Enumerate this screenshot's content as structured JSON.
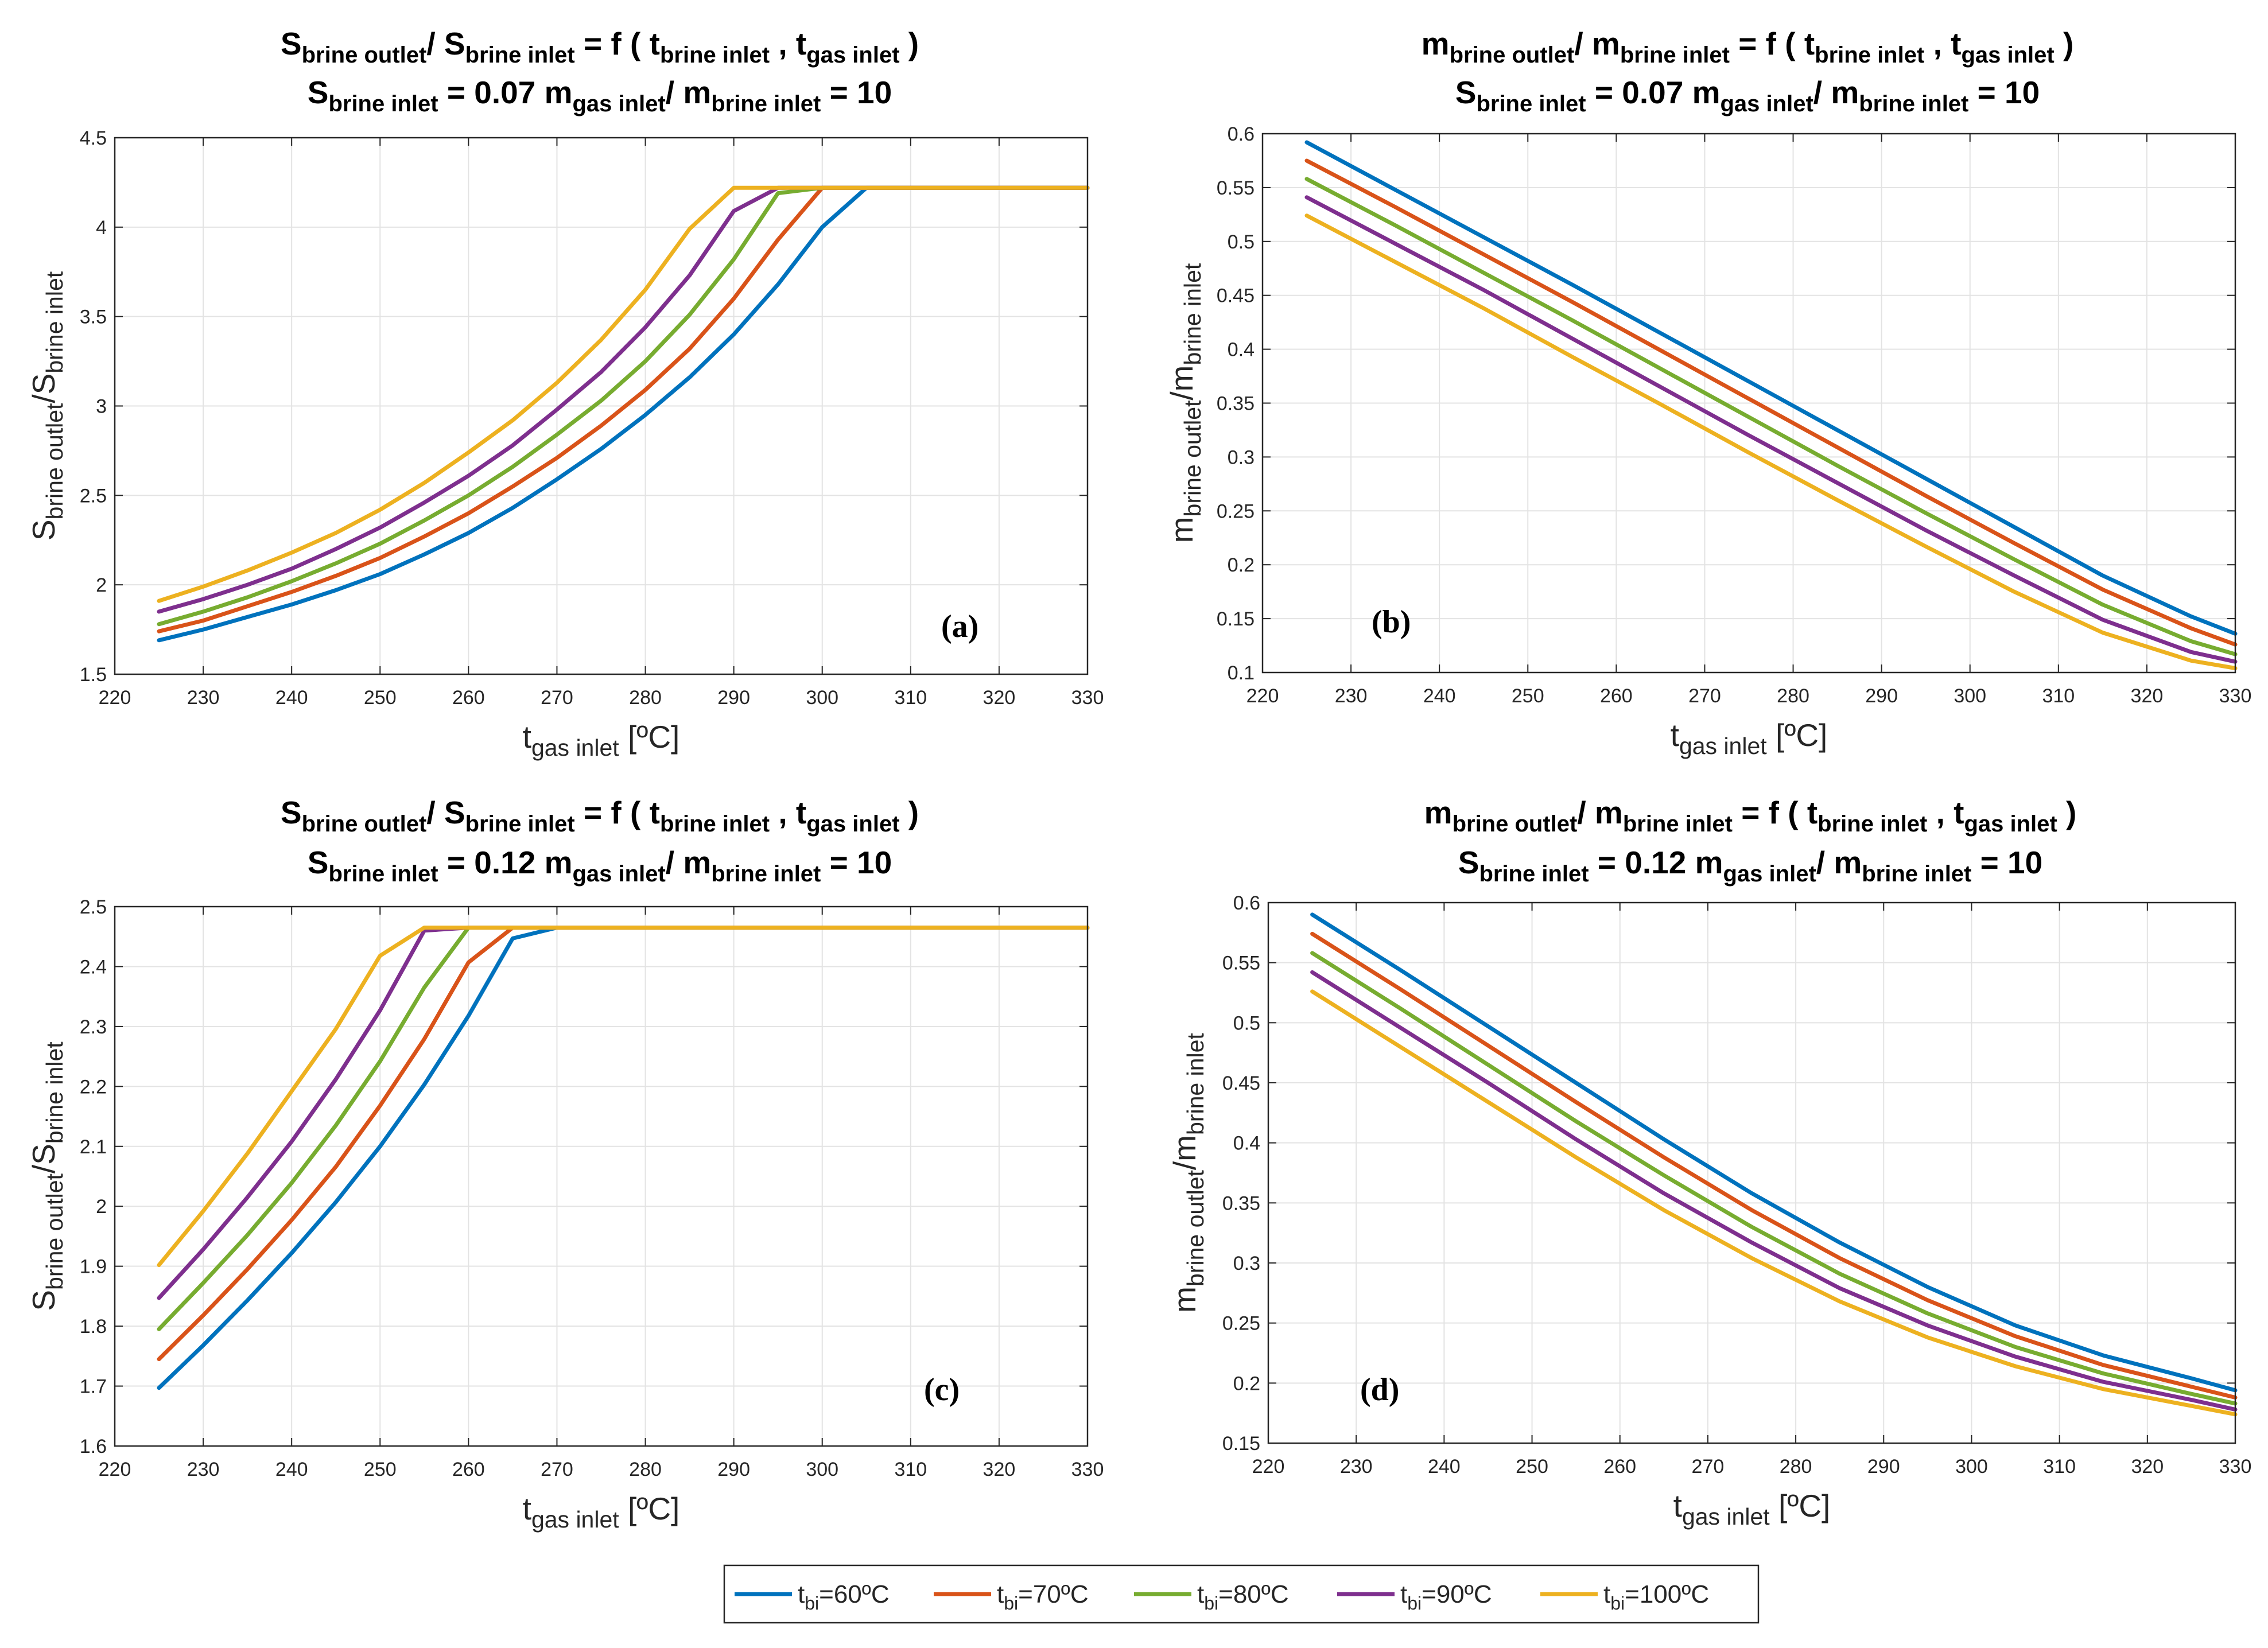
{
  "legend": {
    "entries": [
      {
        "main": "t",
        "sub": "bi",
        "rest": "=60ºC",
        "color": "#0072BD"
      },
      {
        "main": "t",
        "sub": "bi",
        "rest": "=70ºC",
        "color": "#D95319"
      },
      {
        "main": "t",
        "sub": "bi",
        "rest": "=80ºC",
        "color": "#77AC30"
      },
      {
        "main": "t",
        "sub": "bi",
        "rest": "=90ºC",
        "color": "#7E2F8E"
      },
      {
        "main": "t",
        "sub": "bi",
        "rest": "=100ºC",
        "color": "#EDB120"
      }
    ]
  },
  "common": {
    "xlabel_main": "t",
    "xlabel_sub": "gas inlet",
    "xlabel_unit": " [ºC]",
    "ratio_eq": "/ S",
    "brine_inlet_sub": "brine inlet",
    "brine_outlet_sub": "brine outlet",
    "f_text": " = f ( t",
    "comma_t": " , t",
    "gas_inlet_sub": "gas inlet",
    "close": " )",
    "m_gas_text": "m",
    "m_ratio_mid": "/ m",
    "eq10": " = 10",
    "S": "S",
    "m": "m",
    "slash": "/"
  },
  "chart_data": [
    {
      "id": "a",
      "type": "line",
      "panel_label": "(a)",
      "title_line1": {
        "lhs_var": "S",
        "lhs_sub": "brine outlet",
        "rhs_var": "S",
        "rhs_sub": "brine inlet"
      },
      "title_line2": {
        "s_value": " = 0.07",
        "ratio_value": " = 10"
      },
      "ylabel": {
        "var": "S",
        "num_sub": "brine outlet",
        "den_var": "S",
        "den_sub": "brine inlet"
      },
      "xlim": [
        220,
        330
      ],
      "ylim": [
        1.5,
        4.5
      ],
      "xticks": [
        220,
        230,
        240,
        250,
        260,
        270,
        280,
        290,
        300,
        310,
        320,
        330
      ],
      "yticks": [
        1.5,
        2,
        2.5,
        3,
        3.5,
        4,
        4.5
      ],
      "ytick_labels": [
        "1.5",
        "2",
        "2.5",
        "3",
        "3.5",
        "4",
        "4.5"
      ],
      "x": [
        225,
        230,
        235,
        240,
        245,
        250,
        255,
        260,
        265,
        270,
        275,
        280,
        285,
        290,
        295,
        300,
        305,
        310,
        320,
        330
      ],
      "series": [
        {
          "name": "tbi=60ºC",
          "values": [
            1.69,
            1.75,
            1.82,
            1.89,
            1.97,
            2.06,
            2.17,
            2.29,
            2.43,
            2.59,
            2.76,
            2.95,
            3.16,
            3.4,
            3.68,
            4.0,
            4.22,
            4.22,
            4.22,
            4.22
          ]
        },
        {
          "name": "tbi=70ºC",
          "values": [
            1.74,
            1.8,
            1.88,
            1.96,
            2.05,
            2.15,
            2.27,
            2.4,
            2.55,
            2.71,
            2.89,
            3.09,
            3.32,
            3.6,
            3.93,
            4.22,
            4.22,
            4.22,
            4.22,
            4.22
          ]
        },
        {
          "name": "tbi=80ºC",
          "values": [
            1.78,
            1.85,
            1.93,
            2.02,
            2.12,
            2.23,
            2.36,
            2.5,
            2.66,
            2.84,
            3.03,
            3.25,
            3.51,
            3.82,
            4.19,
            4.22,
            4.22,
            4.22,
            4.22,
            4.22
          ]
        },
        {
          "name": "tbi=90ºC",
          "values": [
            1.85,
            1.92,
            2.0,
            2.09,
            2.2,
            2.32,
            2.46,
            2.61,
            2.78,
            2.98,
            3.19,
            3.44,
            3.73,
            4.09,
            4.22,
            4.22,
            4.22,
            4.22,
            4.22,
            4.22
          ]
        },
        {
          "name": "tbi=100ºC",
          "values": [
            1.91,
            1.99,
            2.08,
            2.18,
            2.29,
            2.42,
            2.57,
            2.74,
            2.92,
            3.13,
            3.37,
            3.65,
            3.99,
            4.22,
            4.22,
            4.22,
            4.22,
            4.22,
            4.22,
            4.22
          ]
        }
      ]
    },
    {
      "id": "b",
      "type": "line",
      "panel_label": "(b)",
      "title_line1": {
        "lhs_var": "m",
        "lhs_sub": "brine outlet",
        "rhs_var": "m",
        "rhs_sub": "brine inlet"
      },
      "title_line2": {
        "s_value": " = 0.07",
        "ratio_value": " = 10"
      },
      "ylabel": {
        "var": "m",
        "num_sub": "brine outlet",
        "den_var": "m",
        "den_sub": "brine inlet"
      },
      "xlim": [
        220,
        330
      ],
      "ylim": [
        0.1,
        0.6
      ],
      "xticks": [
        220,
        230,
        240,
        250,
        260,
        270,
        280,
        290,
        300,
        310,
        320,
        330
      ],
      "yticks": [
        0.1,
        0.15,
        0.2,
        0.25,
        0.3,
        0.35,
        0.4,
        0.45,
        0.5,
        0.55,
        0.6
      ],
      "ytick_labels": [
        "0.1",
        "0.15",
        "0.2",
        "0.25",
        "0.3",
        "0.35",
        "0.4",
        "0.45",
        "0.5",
        "0.55",
        "0.6"
      ],
      "x": [
        225,
        235,
        245,
        255,
        265,
        275,
        285,
        295,
        305,
        315,
        325,
        330
      ],
      "series": [
        {
          "name": "tbi=60ºC",
          "values": [
            0.592,
            0.548,
            0.504,
            0.46,
            0.415,
            0.37,
            0.325,
            0.28,
            0.235,
            0.19,
            0.152,
            0.136
          ]
        },
        {
          "name": "tbi=70ºC",
          "values": [
            0.575,
            0.532,
            0.488,
            0.444,
            0.399,
            0.354,
            0.309,
            0.264,
            0.22,
            0.177,
            0.141,
            0.126
          ]
        },
        {
          "name": "tbi=80ºC",
          "values": [
            0.558,
            0.515,
            0.471,
            0.427,
            0.382,
            0.337,
            0.292,
            0.248,
            0.205,
            0.163,
            0.129,
            0.117
          ]
        },
        {
          "name": "tbi=90ºC",
          "values": [
            0.541,
            0.498,
            0.455,
            0.41,
            0.365,
            0.32,
            0.276,
            0.232,
            0.19,
            0.149,
            0.119,
            0.11
          ]
        },
        {
          "name": "tbi=100ºC",
          "values": [
            0.524,
            0.481,
            0.438,
            0.393,
            0.349,
            0.304,
            0.26,
            0.217,
            0.175,
            0.137,
            0.111,
            0.104
          ]
        }
      ]
    },
    {
      "id": "c",
      "type": "line",
      "panel_label": "(c)",
      "title_line1": {
        "lhs_var": "S",
        "lhs_sub": "brine outlet",
        "rhs_var": "S",
        "rhs_sub": "brine inlet"
      },
      "title_line2": {
        "s_value": " = 0.12",
        "ratio_value": " = 10"
      },
      "ylabel": {
        "var": "S",
        "num_sub": "brine outlet",
        "den_var": "S",
        "den_sub": "brine inlet"
      },
      "xlim": [
        220,
        330
      ],
      "ylim": [
        1.6,
        2.5
      ],
      "xticks": [
        220,
        230,
        240,
        250,
        260,
        270,
        280,
        290,
        300,
        310,
        320,
        330
      ],
      "yticks": [
        1.6,
        1.7,
        1.8,
        1.9,
        2,
        2.1,
        2.2,
        2.3,
        2.4,
        2.5
      ],
      "ytick_labels": [
        "1.6",
        "1.7",
        "1.8",
        "1.9",
        "2",
        "2.1",
        "2.2",
        "2.3",
        "2.4",
        "2.5"
      ],
      "x": [
        225,
        230,
        235,
        240,
        245,
        250,
        255,
        260,
        265,
        270,
        280,
        290,
        300,
        310,
        320,
        330
      ],
      "series": [
        {
          "name": "tbi=60ºC",
          "values": [
            1.697,
            1.768,
            1.843,
            1.922,
            2.007,
            2.1,
            2.203,
            2.318,
            2.447,
            2.465,
            2.465,
            2.465,
            2.465,
            2.465,
            2.465,
            2.465
          ]
        },
        {
          "name": "tbi=70ºC",
          "values": [
            1.745,
            1.818,
            1.895,
            1.977,
            2.066,
            2.168,
            2.279,
            2.407,
            2.465,
            2.465,
            2.465,
            2.465,
            2.465,
            2.465,
            2.465,
            2.465
          ]
        },
        {
          "name": "tbi=80ºC",
          "values": [
            1.795,
            1.872,
            1.952,
            2.039,
            2.135,
            2.242,
            2.365,
            2.465,
            2.465,
            2.465,
            2.465,
            2.465,
            2.465,
            2.465,
            2.465,
            2.465
          ]
        },
        {
          "name": "tbi=90ºC",
          "values": [
            1.847,
            1.928,
            2.015,
            2.108,
            2.212,
            2.327,
            2.46,
            2.465,
            2.465,
            2.465,
            2.465,
            2.465,
            2.465,
            2.465,
            2.465,
            2.465
          ]
        },
        {
          "name": "tbi=100ºC",
          "values": [
            1.902,
            1.992,
            2.088,
            2.192,
            2.296,
            2.418,
            2.465,
            2.465,
            2.465,
            2.465,
            2.465,
            2.465,
            2.465,
            2.465,
            2.465,
            2.465
          ]
        }
      ]
    },
    {
      "id": "d",
      "type": "line",
      "panel_label": "(d)",
      "title_line1": {
        "lhs_var": "m",
        "lhs_sub": "brine outlet",
        "rhs_var": "m",
        "rhs_sub": "brine inlet"
      },
      "title_line2": {
        "s_value": " = 0.12",
        "ratio_value": " = 10"
      },
      "ylabel": {
        "var": "m",
        "num_sub": "brine outlet",
        "den_var": "m",
        "den_sub": "brine inlet"
      },
      "xlim": [
        220,
        330
      ],
      "ylim": [
        0.15,
        0.6
      ],
      "xticks": [
        220,
        230,
        240,
        250,
        260,
        270,
        280,
        290,
        300,
        310,
        320,
        330
      ],
      "yticks": [
        0.15,
        0.2,
        0.25,
        0.3,
        0.35,
        0.4,
        0.45,
        0.5,
        0.55,
        0.6
      ],
      "ytick_labels": [
        "0.15",
        "0.2",
        "0.25",
        "0.3",
        "0.35",
        "0.4",
        "0.45",
        "0.5",
        "0.55",
        "0.6"
      ],
      "x": [
        225,
        235,
        245,
        255,
        265,
        275,
        285,
        295,
        305,
        315,
        325,
        330
      ],
      "series": [
        {
          "name": "tbi=60ºC",
          "values": [
            0.59,
            0.544,
            0.497,
            0.45,
            0.403,
            0.358,
            0.317,
            0.28,
            0.248,
            0.223,
            0.204,
            0.194
          ]
        },
        {
          "name": "tbi=70ºC",
          "values": [
            0.574,
            0.528,
            0.481,
            0.434,
            0.388,
            0.344,
            0.304,
            0.269,
            0.239,
            0.215,
            0.197,
            0.188
          ]
        },
        {
          "name": "tbi=80ºC",
          "values": [
            0.558,
            0.512,
            0.465,
            0.418,
            0.373,
            0.33,
            0.291,
            0.258,
            0.23,
            0.208,
            0.191,
            0.183
          ]
        },
        {
          "name": "tbi=90ºC",
          "values": [
            0.542,
            0.496,
            0.45,
            0.403,
            0.358,
            0.317,
            0.279,
            0.248,
            0.222,
            0.201,
            0.186,
            0.178
          ]
        },
        {
          "name": "tbi=100ºC",
          "values": [
            0.526,
            0.48,
            0.434,
            0.388,
            0.344,
            0.304,
            0.268,
            0.238,
            0.214,
            0.195,
            0.181,
            0.174
          ]
        }
      ]
    }
  ]
}
